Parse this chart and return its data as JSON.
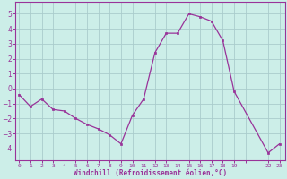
{
  "x": [
    0,
    1,
    2,
    3,
    4,
    5,
    6,
    7,
    8,
    9,
    10,
    11,
    12,
    13,
    14,
    15,
    16,
    17,
    18,
    19,
    22,
    23
  ],
  "y": [
    -0.4,
    -1.2,
    -0.7,
    -1.4,
    -1.5,
    -2.0,
    -2.4,
    -2.7,
    -3.1,
    -3.7,
    -1.8,
    -0.7,
    2.4,
    3.7,
    3.7,
    5.0,
    4.8,
    4.5,
    3.2,
    -0.2,
    -4.3,
    -3.7
  ],
  "line_color": "#993399",
  "marker_color": "#993399",
  "bg_color": "#cceee8",
  "grid_color": "#aacccc",
  "xlabel": "Windchill (Refroidissement éolien,°C)",
  "xlabel_color": "#993399",
  "tick_color": "#993399",
  "ylim": [
    -4.8,
    5.8
  ],
  "yticks": [
    -4,
    -3,
    -2,
    -1,
    0,
    1,
    2,
    3,
    4,
    5
  ],
  "xlim": [
    -0.3,
    23.5
  ],
  "border_color": "#993399"
}
